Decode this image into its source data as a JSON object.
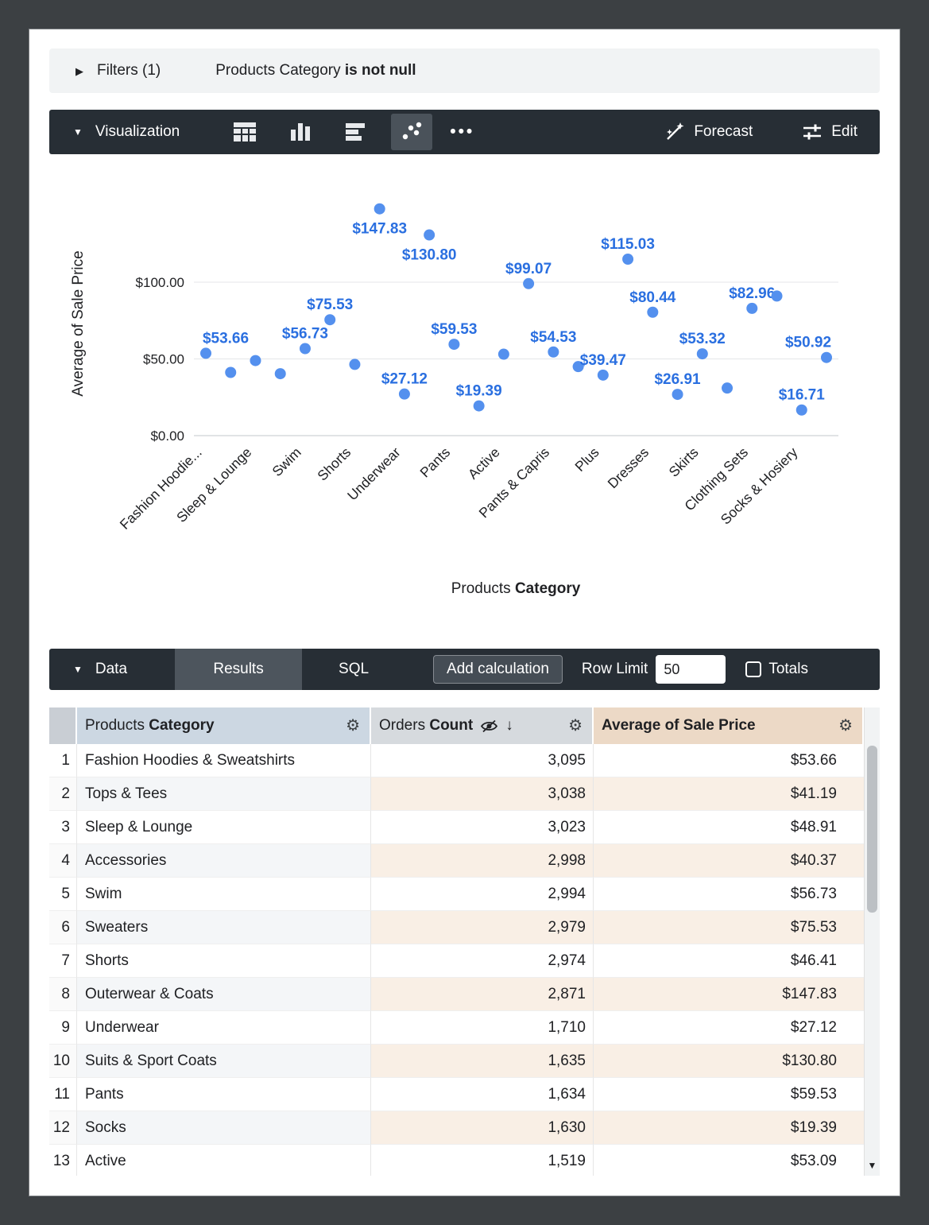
{
  "filters": {
    "expand_icon": "▶",
    "title": "Filters (1)",
    "field": "Products Category",
    "condition": "is not null"
  },
  "viz_toolbar": {
    "collapse_icon": "▼",
    "title": "Visualization",
    "icon_names": [
      "table-chart-icon",
      "column-chart-icon",
      "bar-chart-icon",
      "scatter-chart-icon",
      "more-options-icon"
    ],
    "selected_icon": "scatter-chart-icon",
    "more_icon": "•••",
    "forecast_label": "Forecast",
    "edit_label": "Edit"
  },
  "chart_data": {
    "type": "scatter",
    "ylabel": "Average of Sale Price",
    "xlabel": "Products Category",
    "xlabel_normal": "Products ",
    "xlabel_bold": "Category",
    "ylim": [
      0,
      160
    ],
    "grid": true,
    "point_color": "#5490ee",
    "label_color": "#2a6fe0",
    "yticks": [
      {
        "v": 0,
        "label": "$0.00"
      },
      {
        "v": 50,
        "label": "$50.00"
      },
      {
        "v": 100,
        "label": "$100.00"
      }
    ],
    "points": [
      {
        "value": 53.66,
        "label": "$53.66"
      },
      {
        "value": 41.19,
        "label": null
      },
      {
        "value": 48.91,
        "label": null
      },
      {
        "value": 40.37,
        "label": null
      },
      {
        "value": 56.73,
        "label": "$56.73"
      },
      {
        "value": 75.53,
        "label": "$75.53"
      },
      {
        "value": 46.41,
        "label": null
      },
      {
        "value": 147.83,
        "label": "$147.83"
      },
      {
        "value": 27.12,
        "label": "$27.12"
      },
      {
        "value": 130.8,
        "label": "$130.80"
      },
      {
        "value": 59.53,
        "label": "$59.53"
      },
      {
        "value": 19.39,
        "label": "$19.39"
      },
      {
        "value": 53.09,
        "label": null
      },
      {
        "value": 99.07,
        "label": "$99.07"
      },
      {
        "value": 54.53,
        "label": "$54.53"
      },
      {
        "value": 45.0,
        "label": null
      },
      {
        "value": 39.47,
        "label": "$39.47"
      },
      {
        "value": 115.03,
        "label": "$115.03"
      },
      {
        "value": 80.44,
        "label": "$80.44"
      },
      {
        "value": 26.91,
        "label": "$26.91"
      },
      {
        "value": 53.32,
        "label": "$53.32"
      },
      {
        "value": 31.0,
        "label": null
      },
      {
        "value": 82.96,
        "label": "$82.96"
      },
      {
        "value": 91.0,
        "label": null
      },
      {
        "value": 16.71,
        "label": "$16.71"
      },
      {
        "value": 50.92,
        "label": "$50.92"
      }
    ],
    "x_tick_labels": [
      {
        "index": 0,
        "label": "Fashion Hoodie..."
      },
      {
        "index": 2,
        "label": "Sleep & Lounge"
      },
      {
        "index": 4,
        "label": "Swim"
      },
      {
        "index": 6,
        "label": "Shorts"
      },
      {
        "index": 8,
        "label": "Underwear"
      },
      {
        "index": 10,
        "label": "Pants"
      },
      {
        "index": 12,
        "label": "Active"
      },
      {
        "index": 14,
        "label": "Pants & Capris"
      },
      {
        "index": 16,
        "label": "Plus"
      },
      {
        "index": 18,
        "label": "Dresses"
      },
      {
        "index": 20,
        "label": "Skirts"
      },
      {
        "index": 22,
        "label": "Clothing Sets"
      },
      {
        "index": 24,
        "label": "Socks & Hosiery"
      }
    ]
  },
  "data_toolbar": {
    "collapse_icon": "▼",
    "title": "Data",
    "tabs": [
      {
        "label": "Results",
        "active": true
      },
      {
        "label": "SQL",
        "active": false
      }
    ],
    "add_calculation_label": "Add calculation",
    "row_limit_label": "Row Limit",
    "row_limit_value": "50",
    "totals_label": "Totals"
  },
  "table": {
    "gear_icon": "⚙",
    "sort_icon": "↓",
    "headers": {
      "category_normal": "Products ",
      "category_bold": "Category",
      "orders_normal": "Orders ",
      "orders_bold": "Count",
      "price_bold": "Average of Sale Price"
    },
    "rows": [
      {
        "num": "1",
        "category": "Fashion Hoodies & Sweatshirts",
        "orders": "3,095",
        "price": "$53.66"
      },
      {
        "num": "2",
        "category": "Tops & Tees",
        "orders": "3,038",
        "price": "$41.19"
      },
      {
        "num": "3",
        "category": "Sleep & Lounge",
        "orders": "3,023",
        "price": "$48.91"
      },
      {
        "num": "4",
        "category": "Accessories",
        "orders": "2,998",
        "price": "$40.37"
      },
      {
        "num": "5",
        "category": "Swim",
        "orders": "2,994",
        "price": "$56.73"
      },
      {
        "num": "6",
        "category": "Sweaters",
        "orders": "2,979",
        "price": "$75.53"
      },
      {
        "num": "7",
        "category": "Shorts",
        "orders": "2,974",
        "price": "$46.41"
      },
      {
        "num": "8",
        "category": "Outerwear & Coats",
        "orders": "2,871",
        "price": "$147.83"
      },
      {
        "num": "9",
        "category": "Underwear",
        "orders": "1,710",
        "price": "$27.12"
      },
      {
        "num": "10",
        "category": "Suits & Sport Coats",
        "orders": "1,635",
        "price": "$130.80"
      },
      {
        "num": "11",
        "category": "Pants",
        "orders": "1,634",
        "price": "$59.53"
      },
      {
        "num": "12",
        "category": "Socks",
        "orders": "1,630",
        "price": "$19.39"
      },
      {
        "num": "13",
        "category": "Active",
        "orders": "1,519",
        "price": "$53.09"
      }
    ]
  },
  "colors": {
    "frame_bg": "#3c4043",
    "toolbar_dark": "#272e35",
    "point_blue": "#5490ee",
    "label_blue": "#2a6fe0",
    "dimension_header": "#ccd7e2",
    "sorted_header": "#d6dade",
    "measure_header": "#ecd9c6",
    "measure_stripe": "#f9efe5"
  }
}
